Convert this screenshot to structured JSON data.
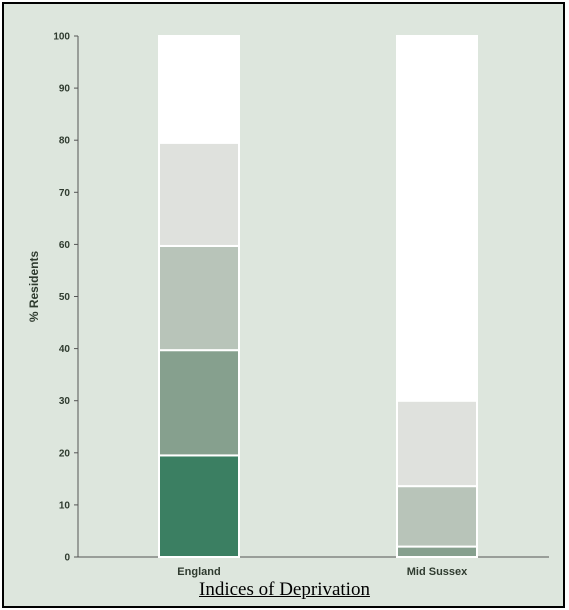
{
  "caption": "Indices of Deprivation",
  "chart_data": {
    "type": "bar",
    "stacked": true,
    "categories": [
      "England",
      "Mid Sussex"
    ],
    "ylabel": "% Residents",
    "ylim": [
      0,
      100
    ],
    "yticks": [
      0,
      10,
      20,
      30,
      40,
      50,
      60,
      70,
      80,
      90,
      100
    ],
    "grid": false,
    "series": [
      {
        "color": "#3b7f62",
        "values": [
          19.5,
          0
        ]
      },
      {
        "color": "#86a08e",
        "values": [
          20.2,
          2.0
        ]
      },
      {
        "color": "#b8c4b9",
        "values": [
          20.0,
          11.6
        ]
      },
      {
        "color": "#dfe1dd",
        "values": [
          19.8,
          16.4
        ]
      },
      {
        "color": "#ffffff",
        "values": [
          20.5,
          70.0
        ]
      }
    ]
  }
}
